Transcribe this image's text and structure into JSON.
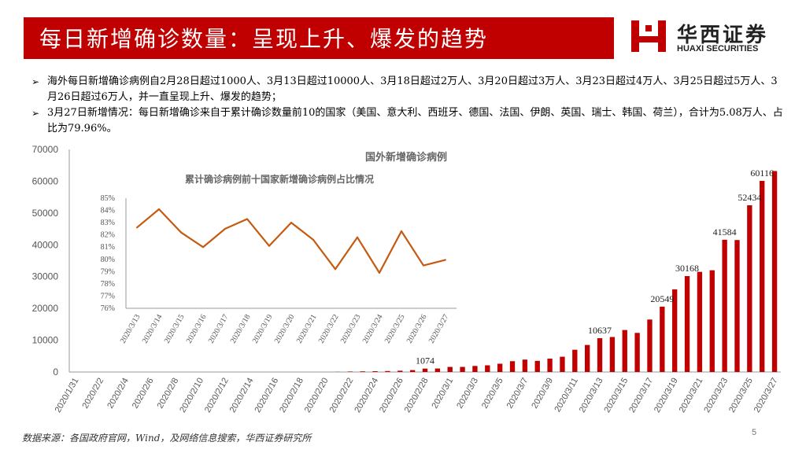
{
  "header": {
    "title": "每日新增确诊数量：呈现上升、爆发的趋势"
  },
  "logo": {
    "cn": "华西证券",
    "en": "HUAXI SECURITIES",
    "color": "#c00000"
  },
  "bullets": [
    {
      "marker": "➢",
      "text": "海外每日新增确诊病例自2月28日超过1000人、3月13日超过10000人、3月18日超过2万人、3月20日超过3万人、3月23日超过4万人、3月25日超过5万人、3月26日超过6万人，并一直呈现上升、爆发的趋势；"
    },
    {
      "marker": "➢",
      "text": "3月27日新增情况：每日新增确诊来自于累计确诊数量前10的国家（美国、意大利、西班牙、德国、法国、伊朗、英国、瑞士、韩国、荷兰），合计为5.08万人、占比为79.96%。"
    }
  ],
  "chart_data": [
    {
      "type": "bar",
      "title": "国外新增确诊病例",
      "color": "#c00000",
      "ylim": [
        0,
        70000
      ],
      "yticks": [
        "0",
        "10000",
        "20000",
        "30000",
        "40000",
        "50000",
        "60000",
        "70000"
      ],
      "x": [
        "2020/1/31",
        "2020/2/1",
        "2020/2/2",
        "2020/2/3",
        "2020/2/4",
        "2020/2/5",
        "2020/2/6",
        "2020/2/7",
        "2020/2/8",
        "2020/2/9",
        "2020/2/10",
        "2020/2/11",
        "2020/2/12",
        "2020/2/13",
        "2020/2/14",
        "2020/2/15",
        "2020/2/16",
        "2020/2/17",
        "2020/2/18",
        "2020/2/19",
        "2020/2/20",
        "2020/2/21",
        "2020/2/22",
        "2020/2/23",
        "2020/2/24",
        "2020/2/25",
        "2020/2/26",
        "2020/2/27",
        "2020/2/28",
        "2020/2/29",
        "2020/3/1",
        "2020/3/2",
        "2020/3/3",
        "2020/3/4",
        "2020/3/5",
        "2020/3/6",
        "2020/3/7",
        "2020/3/8",
        "2020/3/9",
        "2020/3/10",
        "2020/3/11",
        "2020/3/12",
        "2020/3/13",
        "2020/3/14",
        "2020/3/15",
        "2020/3/16",
        "2020/3/17",
        "2020/3/18",
        "2020/3/19",
        "2020/3/20",
        "2020/3/21",
        "2020/3/22",
        "2020/3/23",
        "2020/3/24",
        "2020/3/25",
        "2020/3/26",
        "2020/3/27"
      ],
      "xtick_labels": [
        "2020/1/31",
        "2020/2/2",
        "2020/2/4",
        "2020/2/6",
        "2020/2/8",
        "2020/2/10",
        "2020/2/12",
        "2020/2/14",
        "2020/2/16",
        "2020/2/18",
        "2020/2/20",
        "2020/2/22",
        "2020/2/24",
        "2020/2/26",
        "2020/2/28",
        "2020/3/1",
        "2020/3/3",
        "2020/3/5",
        "2020/3/7",
        "2020/3/9",
        "2020/3/11",
        "2020/3/13",
        "2020/3/15",
        "2020/3/17",
        "2020/3/19",
        "2020/3/21",
        "2020/3/23",
        "2020/3/25",
        "2020/3/27"
      ],
      "values": [
        0,
        0,
        0,
        0,
        0,
        0,
        0,
        0,
        0,
        0,
        0,
        0,
        0,
        0,
        0,
        0,
        0,
        0,
        0,
        0,
        0,
        40,
        150,
        200,
        250,
        300,
        400,
        600,
        1074,
        1100,
        1600,
        1600,
        1900,
        2100,
        2600,
        3400,
        3900,
        3500,
        4200,
        4800,
        7000,
        8500,
        10637,
        11000,
        13200,
        12300,
        16500,
        20549,
        26000,
        30168,
        31500,
        32000,
        41584,
        41500,
        52434,
        60116,
        63200
      ],
      "data_labels": [
        {
          "index": 28,
          "text": "1074"
        },
        {
          "index": 42,
          "text": "10637"
        },
        {
          "index": 47,
          "text": "20549"
        },
        {
          "index": 49,
          "text": "30168"
        },
        {
          "index": 52,
          "text": "41584"
        },
        {
          "index": 54,
          "text": "52434"
        },
        {
          "index": 55,
          "text": "60116"
        }
      ]
    },
    {
      "type": "line",
      "title": "累计确诊病例前十国家新增确诊病例占比情况",
      "color": "#c55a11",
      "ylim": [
        76,
        85
      ],
      "yticks": [
        "76%",
        "77%",
        "78%",
        "79%",
        "80%",
        "81%",
        "82%",
        "83%",
        "84%",
        "85%"
      ],
      "x": [
        "2020/3/13",
        "2020/3/14",
        "2020/3/15",
        "2020/3/16",
        "2020/3/17",
        "2020/3/18",
        "2020/3/19",
        "2020/3/20",
        "2020/3/21",
        "2020/3/22",
        "2020/3/23",
        "2020/3/24",
        "2020/3/25",
        "2020/3/26",
        "2020/3/27"
      ],
      "values": [
        82.6,
        84.1,
        82.2,
        81.0,
        82.5,
        83.3,
        81.1,
        83.0,
        81.6,
        79.2,
        81.8,
        78.9,
        82.3,
        79.5,
        79.96
      ]
    }
  ],
  "footer": {
    "source": "数据来源：各国政府官网，Wind，及网络信息搜索，华西证券研究所",
    "page": "5"
  }
}
